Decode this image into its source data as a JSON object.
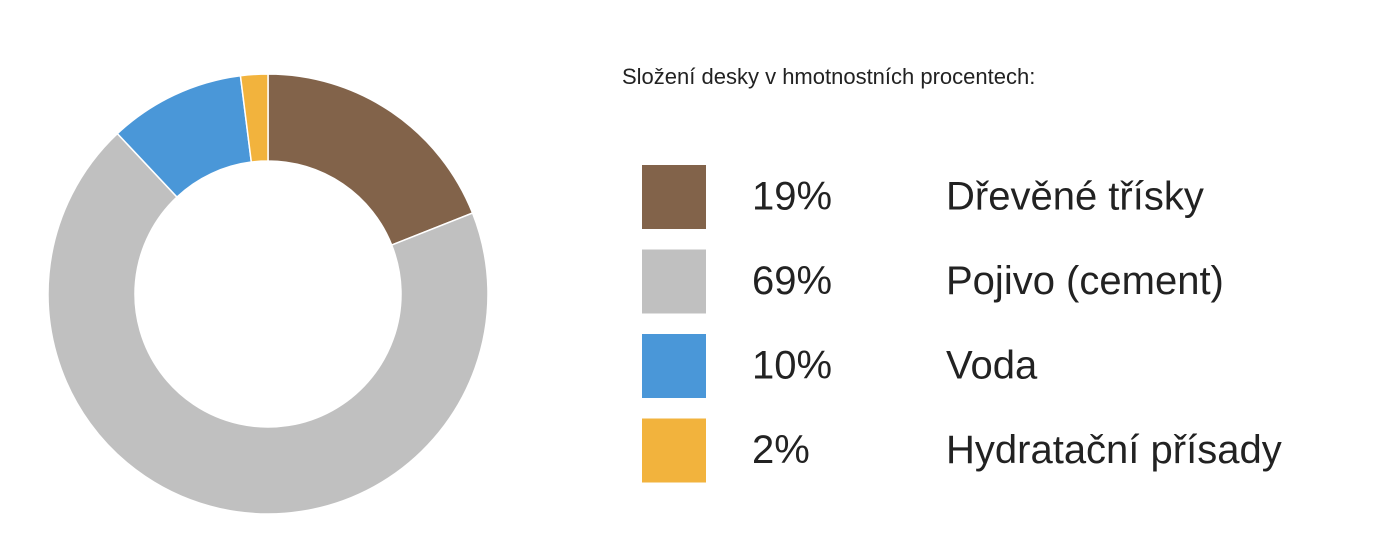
{
  "chart_data": {
    "type": "donut",
    "title": "Složení desky v hmotnostních procentech:",
    "categories": [
      "Dřevěné třísky",
      "Pojivo (cement)",
      "Voda",
      "Hydratační přísady"
    ],
    "values": [
      19,
      69,
      10,
      2
    ],
    "value_labels": [
      "19%",
      "69%",
      "10%",
      "2%"
    ],
    "colors": [
      "#82634a",
      "#c0c0c0",
      "#4a97d8",
      "#f2b33d"
    ]
  }
}
